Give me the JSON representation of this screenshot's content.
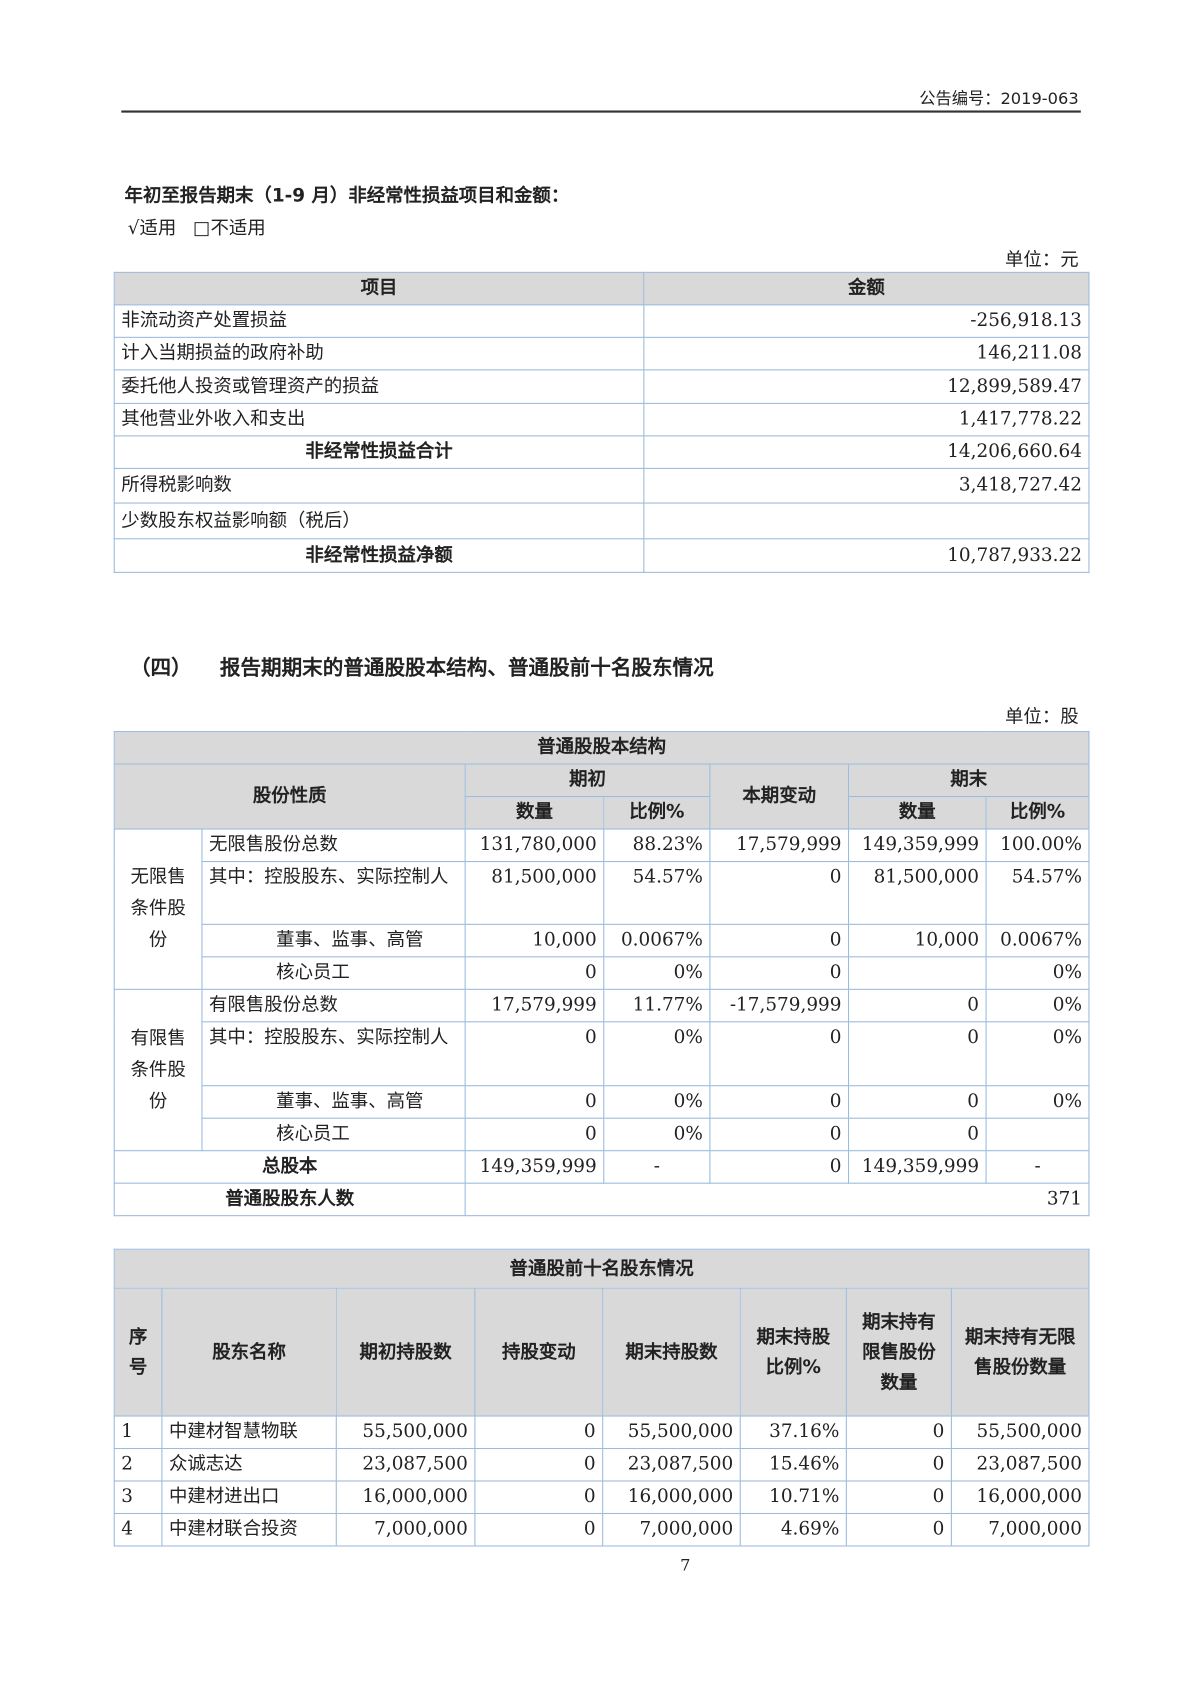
{
  "header": {
    "doc_no": "公告编号：2019-063"
  },
  "section1": {
    "title": "年初至报告期末（1-9 月）非经常性损益项目和金额：",
    "applicable": "√适用",
    "not_applicable": "□不适用",
    "unit": "单位：元",
    "columns": [
      "项目",
      "金额"
    ],
    "rows": [
      {
        "item": "非流动资产处置损益",
        "amount": "-256,918.13",
        "bold": false
      },
      {
        "item": "计入当期损益的政府补助",
        "amount": "146,211.08",
        "bold": false
      },
      {
        "item": "委托他人投资或管理资产的损益",
        "amount": "12,899,589.47",
        "bold": false
      },
      {
        "item": "其他营业外收入和支出",
        "amount": "1,417,778.22",
        "bold": false
      },
      {
        "item": "非经常性损益合计",
        "amount": "14,206,660.64",
        "bold": true
      },
      {
        "item": "所得税影响数",
        "amount": "3,418,727.42",
        "bold": false
      },
      {
        "item": "少数股东权益影响额（税后）",
        "amount": "",
        "bold": false
      },
      {
        "item": "非经常性损益净额",
        "amount": "10,787,933.22",
        "bold": true
      }
    ]
  },
  "section2": {
    "prefix": "（四）",
    "heading": "报告期期末的普通股股本结构、普通股前十名股东情况",
    "unit": "单位：股"
  },
  "share_structure": {
    "title": "普通股股本结构",
    "h_nature": "股份性质",
    "h_begin": "期初",
    "h_change": "本期变动",
    "h_end": "期末",
    "h_qty": "数量",
    "h_ratio": "比例%",
    "group_unrestricted": "无限售条件股份",
    "group_restricted": "有限售条件股份",
    "rows": [
      {
        "label": "无限售股份总数",
        "bq": "131,780,000",
        "br": "88.23%",
        "chg": "17,579,999",
        "eq": "149,359,999",
        "er": "100.00%"
      },
      {
        "label": "其中：控股股东、实际控制人",
        "bq": "81,500,000",
        "br": "54.57%",
        "chg": "0",
        "eq": "81,500,000",
        "er": "54.57%"
      },
      {
        "label": "董事、监事、高管",
        "bq": "10,000",
        "br": "0.0067%",
        "chg": "0",
        "eq": "10,000",
        "er": "0.0067%"
      },
      {
        "label": "核心员工",
        "bq": "0",
        "br": "0%",
        "chg": "0",
        "eq": "",
        "er": "0%"
      },
      {
        "label": "有限售股份总数",
        "bq": "17,579,999",
        "br": "11.77%",
        "chg": "-17,579,999",
        "eq": "0",
        "er": "0%"
      },
      {
        "label": "其中：控股股东、实际控制人",
        "bq": "0",
        "br": "0%",
        "chg": "0",
        "eq": "0",
        "er": "0%"
      },
      {
        "label": "董事、监事、高管",
        "bq": "0",
        "br": "0%",
        "chg": "0",
        "eq": "0",
        "er": "0%"
      },
      {
        "label": "核心员工",
        "bq": "0",
        "br": "0%",
        "chg": "0",
        "eq": "0",
        "er": ""
      }
    ],
    "total": {
      "label": "总股本",
      "bq": "149,359,999",
      "br": "-",
      "chg": "0",
      "eq": "149,359,999",
      "er": "-"
    },
    "holders": {
      "label": "普通股股东人数",
      "value": "371"
    }
  },
  "top10": {
    "title": "普通股前十名股东情况",
    "columns": [
      "序号",
      "股东名称",
      "期初持股数",
      "持股变动",
      "期末持股数",
      "期末持股比例%",
      "期末持有限售股份数量",
      "期末持有无限售股份数量"
    ],
    "rows": [
      [
        "1",
        "中建材智慧物联",
        "55,500,000",
        "0",
        "55,500,000",
        "37.16%",
        "0",
        "55,500,000"
      ],
      [
        "2",
        "众诚志达",
        "23,087,500",
        "0",
        "23,087,500",
        "15.46%",
        "0",
        "23,087,500"
      ],
      [
        "3",
        "中建材进出口",
        "16,000,000",
        "0",
        "16,000,000",
        "10.71%",
        "0",
        "16,000,000"
      ],
      [
        "4",
        "中建材联合投资",
        "7,000,000",
        "0",
        "7,000,000",
        "4.69%",
        "0",
        "7,000,000"
      ]
    ]
  },
  "footer": {
    "page_number": "7"
  }
}
